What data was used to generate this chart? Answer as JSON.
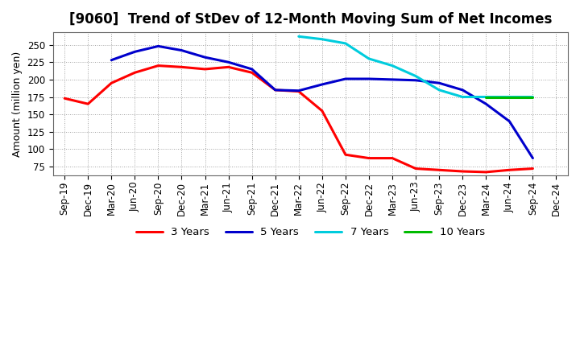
{
  "title": "[9060]  Trend of StDev of 12-Month Moving Sum of Net Incomes",
  "ylabel": "Amount (million yen)",
  "background_color": "#ffffff",
  "grid_color": "#999999",
  "title_fontsize": 12,
  "label_fontsize": 9,
  "tick_fontsize": 8.5,
  "ylim": [
    62,
    268
  ],
  "yticks": [
    75,
    100,
    125,
    150,
    175,
    200,
    225,
    250
  ],
  "xtick_labels": [
    "Sep-19",
    "Dec-19",
    "Mar-20",
    "Jun-20",
    "Sep-20",
    "Dec-20",
    "Mar-21",
    "Jun-21",
    "Sep-21",
    "Dec-21",
    "Mar-22",
    "Jun-22",
    "Sep-22",
    "Dec-22",
    "Mar-23",
    "Jun-23",
    "Sep-23",
    "Dec-23",
    "Mar-24",
    "Jun-24",
    "Sep-24",
    "Dec-24"
  ],
  "series": {
    "3 Years": {
      "color": "#ff0000",
      "x": [
        0,
        1,
        2,
        3,
        4,
        5,
        6,
        7,
        8,
        9,
        10,
        11,
        12,
        13,
        14,
        15,
        16,
        17,
        18,
        19,
        20
      ],
      "values": [
        173,
        165,
        195,
        210,
        220,
        218,
        215,
        218,
        210,
        185,
        183,
        155,
        92,
        87,
        87,
        72,
        70,
        68,
        67,
        70,
        72
      ]
    },
    "5 Years": {
      "color": "#0000cc",
      "x": [
        2,
        3,
        4,
        5,
        6,
        7,
        8,
        9,
        10,
        11,
        12,
        13,
        14,
        15,
        16,
        17,
        18,
        19,
        20
      ],
      "values": [
        228,
        240,
        248,
        242,
        232,
        225,
        215,
        185,
        184,
        193,
        201,
        201,
        200,
        199,
        195,
        185,
        165,
        140,
        87
      ]
    },
    "7 Years": {
      "color": "#00ccdd",
      "x": [
        10,
        11,
        12,
        13,
        14,
        15,
        16,
        17,
        18,
        19,
        20
      ],
      "values": [
        262,
        258,
        252,
        230,
        220,
        205,
        185,
        175,
        175,
        175,
        175
      ]
    },
    "10 Years": {
      "color": "#00bb00",
      "x": [
        18,
        19,
        20
      ],
      "values": [
        175,
        175,
        175
      ]
    }
  },
  "legend_order": [
    "3 Years",
    "5 Years",
    "7 Years",
    "10 Years"
  ]
}
